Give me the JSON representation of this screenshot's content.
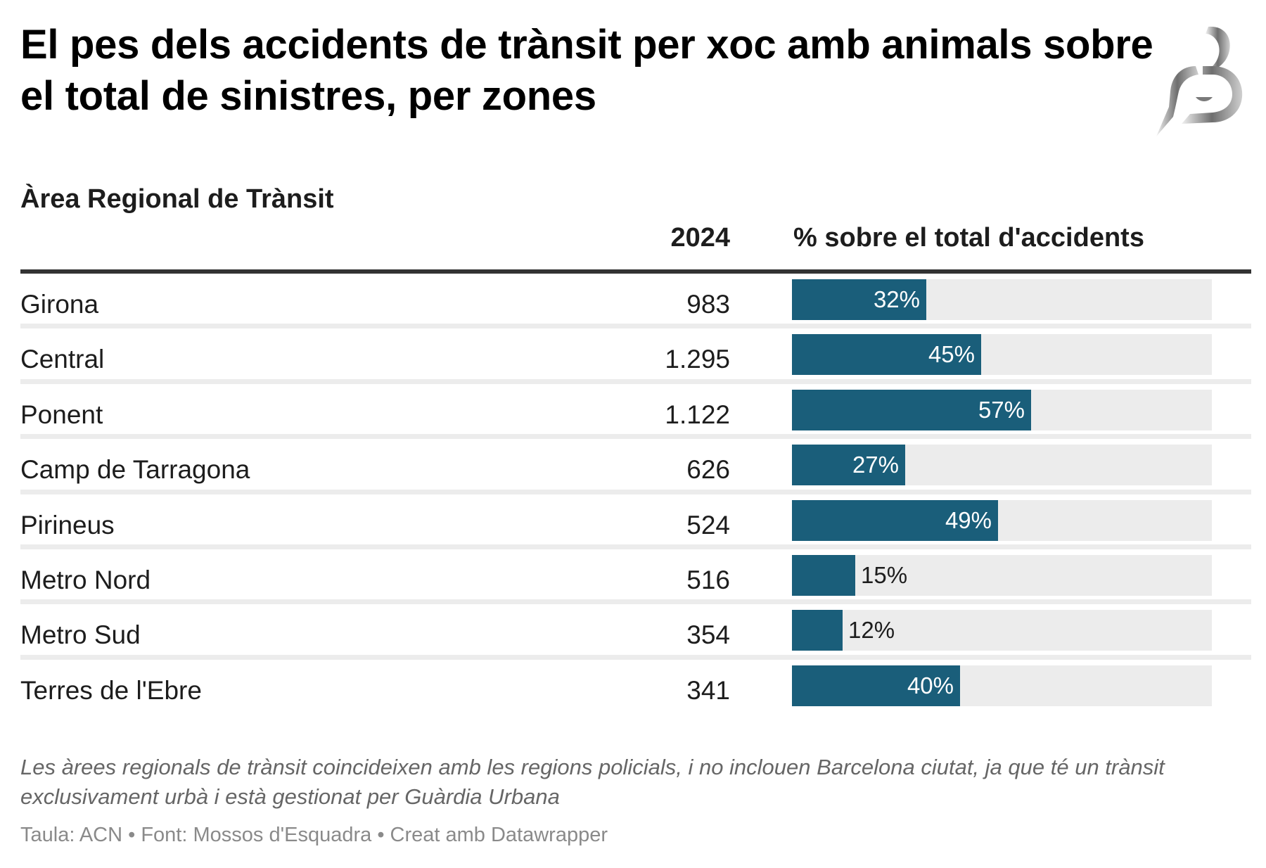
{
  "title": "El pes dels accidents de trànsit per xoc amb animals sobre el total de sinistres, per zones",
  "logo": {
    "name": "brand-logo-B",
    "color": "#888888"
  },
  "columns": {
    "area": "Àrea Regional de Trànsit",
    "year": "2024",
    "percent": "% sobre el total d'accidents"
  },
  "colors": {
    "bar": "#1a5e7a",
    "track": "#ececec",
    "rule": "#333333"
  },
  "chart_data": {
    "type": "table",
    "title": "El pes dels accidents de trànsit per xoc amb animals sobre el total de sinistres, per zones",
    "headers": [
      "Àrea Regional de Trànsit",
      "2024",
      "% sobre el total d'accidents"
    ],
    "percent_range": [
      0,
      100
    ],
    "rows": [
      {
        "area": "Girona",
        "value": "983",
        "percent": 32,
        "percent_label": "32%"
      },
      {
        "area": "Central",
        "value": "1.295",
        "percent": 45,
        "percent_label": "45%"
      },
      {
        "area": "Ponent",
        "value": "1.122",
        "percent": 57,
        "percent_label": "57%"
      },
      {
        "area": "Camp de Tarragona",
        "value": "626",
        "percent": 27,
        "percent_label": "27%"
      },
      {
        "area": "Pirineus",
        "value": "524",
        "percent": 49,
        "percent_label": "49%"
      },
      {
        "area": "Metro Nord",
        "value": "516",
        "percent": 15,
        "percent_label": "15%"
      },
      {
        "area": "Metro Sud",
        "value": "354",
        "percent": 12,
        "percent_label": "12%"
      },
      {
        "area": "Terres de l'Ebre",
        "value": "341",
        "percent": 40,
        "percent_label": "40%"
      }
    ]
  },
  "footnote": "Les àrees regionals de trànsit coincideixen amb les regions policials, i no inclouen Barcelona ciutat, ja que té un trànsit exclusivament urbà i està gestionat per Guàrdia Urbana",
  "source": "Taula: ACN • Font: Mossos d'Esquadra • Creat amb Datawrapper"
}
